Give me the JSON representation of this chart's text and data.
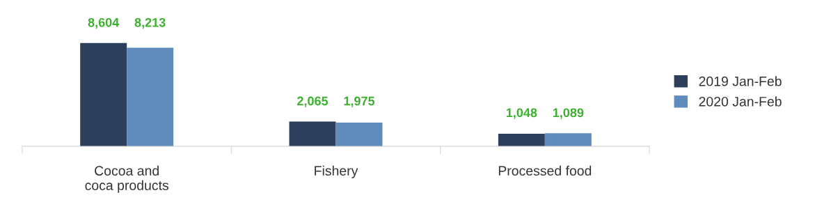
{
  "chart_data": {
    "type": "bar",
    "categories": [
      "Cocoa and\ncoca products",
      "Fishery",
      "Processed food"
    ],
    "series": [
      {
        "name": "2019 Jan-Feb",
        "color": "#2e3f5c",
        "values": [
          8604,
          2065,
          1048
        ],
        "value_labels": [
          "8,604",
          "2,065",
          "1,048"
        ]
      },
      {
        "name": "2020 Jan-Feb",
        "color": "#5f8bbd",
        "values": [
          8213,
          1975,
          1089
        ],
        "value_labels": [
          "8,213",
          "1,975",
          "1,089"
        ]
      }
    ],
    "grid": false,
    "legend": "right"
  }
}
